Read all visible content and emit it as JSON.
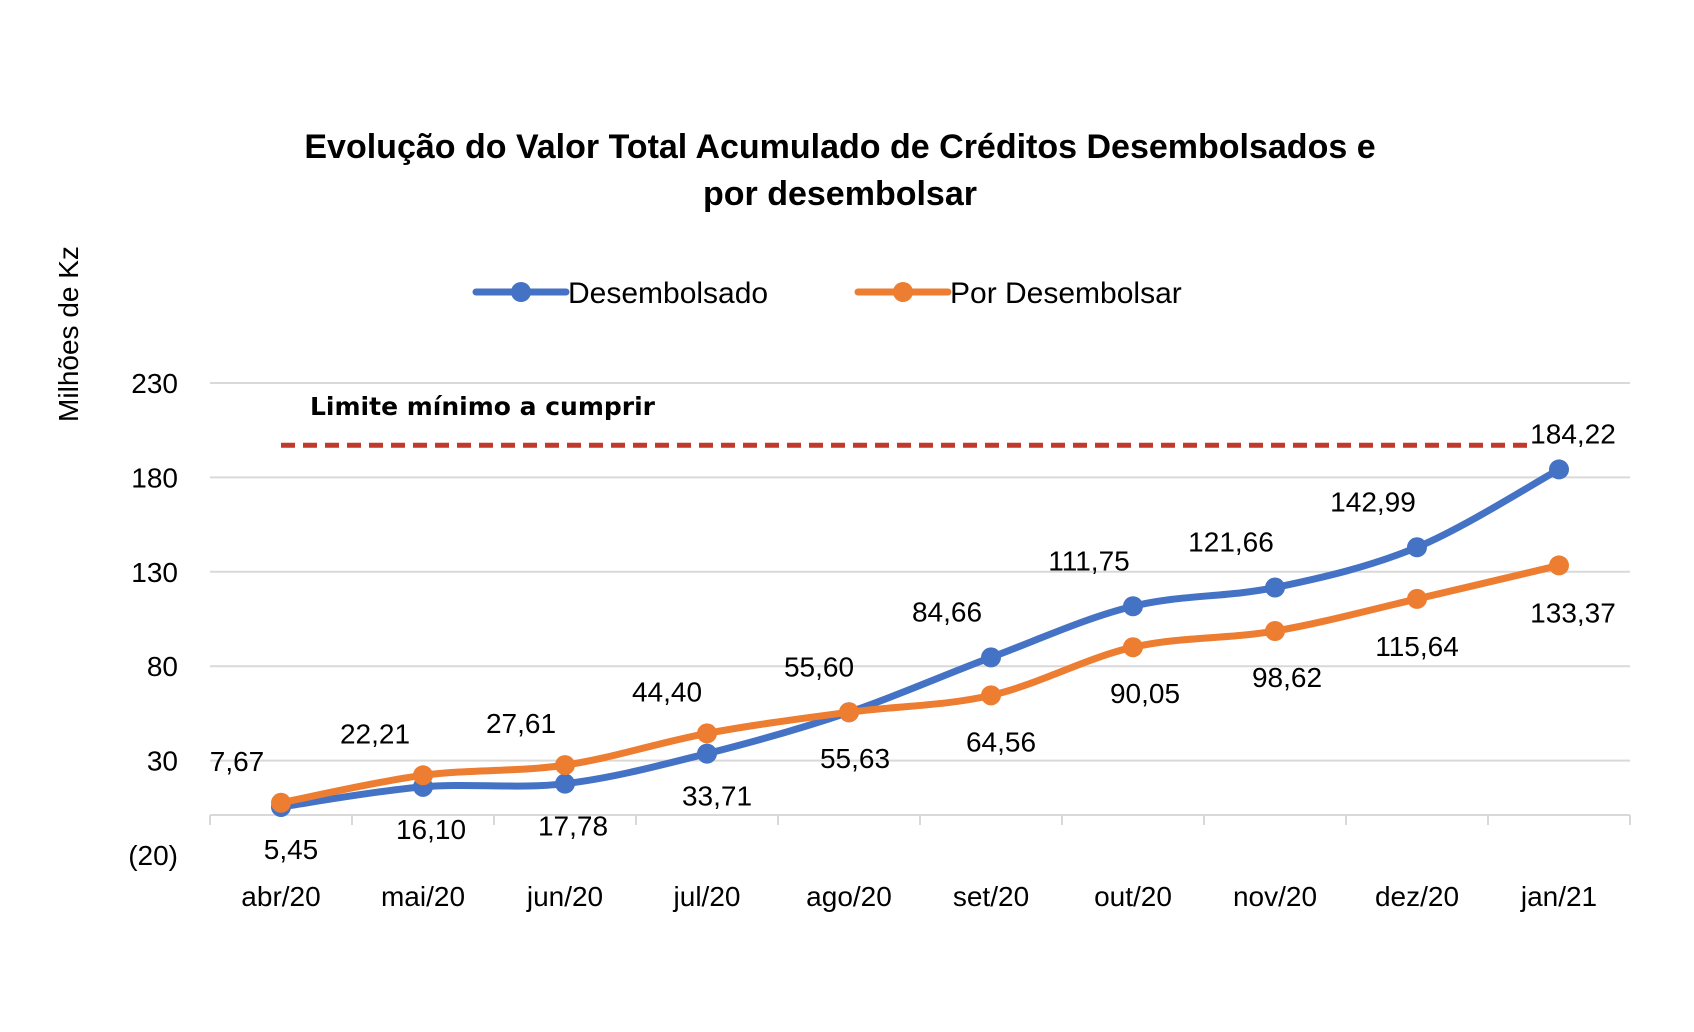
{
  "chart_data": {
    "type": "line",
    "title_lines": [
      "Evolução do Valor Total Acumulado de Créditos Desembolsados  e",
      "por desembolsar"
    ],
    "ylabel": "Milhões de Kz",
    "xlabel": "",
    "categories": [
      "abr/20",
      "mai/20",
      "jun/20",
      "jul/20",
      "ago/20",
      "set/20",
      "out/20",
      "nov/20",
      "dez/20",
      "jan/21"
    ],
    "y_ticks": [
      -20,
      30,
      80,
      130,
      180,
      230
    ],
    "y_tick_labels": [
      "(20)",
      "30",
      "80",
      "130",
      "180",
      "230"
    ],
    "ylim": [
      -20,
      230
    ],
    "grid": true,
    "legend_position": "top",
    "series": [
      {
        "name": "Desembolsado",
        "color": "#4472C4",
        "values": [
          5.45,
          16.1,
          17.78,
          33.71,
          55.6,
          84.66,
          111.75,
          121.66,
          142.99,
          184.22
        ],
        "labels": [
          "5,45",
          "16,10",
          "17,78",
          "33,71",
          "55,60",
          "84,66",
          "111,75",
          "121,66",
          "142,99",
          "184,22"
        ]
      },
      {
        "name": "Por Desembolsar",
        "color": "#ED7D31",
        "values": [
          7.67,
          22.21,
          27.61,
          44.4,
          55.63,
          64.56,
          90.05,
          98.62,
          115.64,
          133.37
        ],
        "labels": [
          "7,67",
          "22,21",
          "27,61",
          "44,40",
          "55,63",
          "64,56",
          "90,05",
          "98,62",
          "115,64",
          "133,37"
        ]
      }
    ],
    "reference_line": {
      "label": "Limite mínimo a cumprir",
      "value": 197,
      "color": "#C0392B",
      "style": "dashed"
    }
  }
}
